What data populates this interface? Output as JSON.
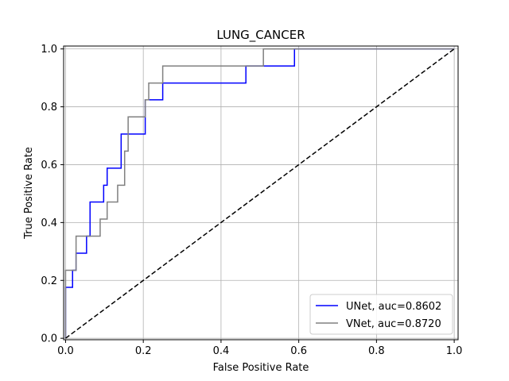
{
  "chart_data": {
    "type": "line",
    "title": "LUNG_CANCER",
    "xlabel": "False Positive Rate",
    "ylabel": "True Positive Rate",
    "xlim": [
      -0.005,
      1.01
    ],
    "ylim": [
      -0.005,
      1.01
    ],
    "xticks": [
      0.0,
      0.2,
      0.4,
      0.6,
      0.8,
      1.0
    ],
    "xtick_labels": [
      "0.0",
      "0.2",
      "0.4",
      "0.6",
      "0.8",
      "1.0"
    ],
    "yticks": [
      0.0,
      0.2,
      0.4,
      0.6,
      0.8,
      1.0
    ],
    "ytick_labels": [
      "0.0",
      "0.2",
      "0.4",
      "0.6",
      "0.8",
      "1.0"
    ],
    "grid": true,
    "legend_position": "lower-right",
    "series": [
      {
        "name": "UNet, auc=0.8602",
        "color": "#0000ff",
        "step": true,
        "points": [
          [
            0.0,
            0.0
          ],
          [
            0.0,
            0.176
          ],
          [
            0.018,
            0.176
          ],
          [
            0.018,
            0.235
          ],
          [
            0.027,
            0.235
          ],
          [
            0.027,
            0.294
          ],
          [
            0.054,
            0.294
          ],
          [
            0.054,
            0.353
          ],
          [
            0.063,
            0.353
          ],
          [
            0.063,
            0.471
          ],
          [
            0.098,
            0.471
          ],
          [
            0.098,
            0.529
          ],
          [
            0.107,
            0.529
          ],
          [
            0.107,
            0.588
          ],
          [
            0.143,
            0.588
          ],
          [
            0.143,
            0.706
          ],
          [
            0.205,
            0.706
          ],
          [
            0.205,
            0.824
          ],
          [
            0.25,
            0.824
          ],
          [
            0.25,
            0.882
          ],
          [
            0.464,
            0.882
          ],
          [
            0.464,
            0.941
          ],
          [
            0.589,
            0.941
          ],
          [
            0.589,
            1.0
          ],
          [
            1.0,
            1.0
          ]
        ]
      },
      {
        "name": "VNet, auc=0.8720",
        "color": "#808080",
        "step": true,
        "points": [
          [
            0.0,
            0.0
          ],
          [
            0.0,
            0.235
          ],
          [
            0.027,
            0.235
          ],
          [
            0.027,
            0.353
          ],
          [
            0.089,
            0.353
          ],
          [
            0.089,
            0.412
          ],
          [
            0.107,
            0.412
          ],
          [
            0.107,
            0.471
          ],
          [
            0.134,
            0.471
          ],
          [
            0.134,
            0.529
          ],
          [
            0.152,
            0.529
          ],
          [
            0.152,
            0.647
          ],
          [
            0.161,
            0.647
          ],
          [
            0.161,
            0.765
          ],
          [
            0.205,
            0.765
          ],
          [
            0.205,
            0.824
          ],
          [
            0.214,
            0.824
          ],
          [
            0.214,
            0.882
          ],
          [
            0.25,
            0.882
          ],
          [
            0.25,
            0.941
          ],
          [
            0.509,
            0.941
          ],
          [
            0.509,
            1.0
          ],
          [
            1.0,
            1.0
          ]
        ]
      },
      {
        "name": "",
        "color": "#000000",
        "dashed": true,
        "points": [
          [
            0.0,
            0.0
          ],
          [
            1.0,
            1.0
          ]
        ]
      }
    ]
  }
}
